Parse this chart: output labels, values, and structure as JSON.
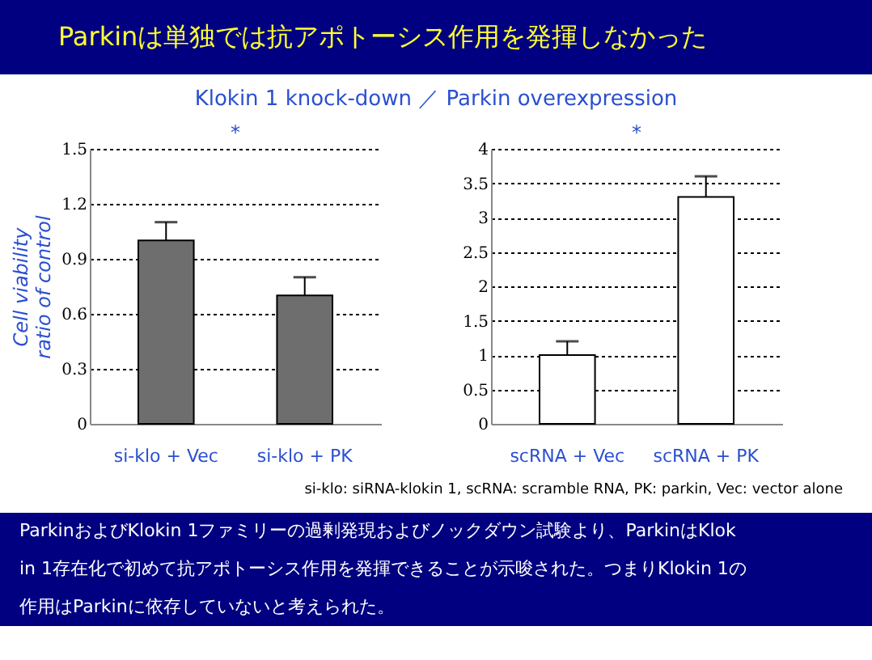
{
  "chart_data": [
    {
      "type": "bar",
      "title": "Parkinは単独では抗アポトーシス作用を発揮しなかった",
      "subtitle": "Klokin 1  knock-down  ／  Parkin  overexpression",
      "ylabel": "Cell viability\nratio of control",
      "categories": [
        "si-klo + Vec",
        "si-klo + PK"
      ],
      "values": [
        1.0,
        0.7
      ],
      "color": "#6e6e6e",
      "errors": [
        [
          1.0,
          1.1
        ],
        [
          0.7,
          0.8
        ]
      ],
      "ylim": [
        0,
        1.5
      ],
      "yticks": [
        0,
        0.3,
        0.6,
        0.9,
        1.2,
        1.5
      ],
      "grid": "y",
      "annotations": [
        "*",
        "si-klo: siRNA-klokin 1, scRNA: scramble RNA, PK: parkin, Vec: vector alone",
        "ParkinおよびKlokin 1ファミリーの過剰発現およびノックダウン試験より、ParkinはKlokin 1存在化で初めて抗アポトーシス作用を発揮できることが示唆された。つまりKlokin 1の作用はParkinに依存していないと考えられた。"
      ]
    },
    {
      "type": "bar",
      "categories": [
        "scRNA + Vec",
        "scRNA + PK"
      ],
      "values": [
        1.0,
        3.3
      ],
      "color": "#ffffff",
      "errors": [
        [
          1.0,
          1.2
        ],
        [
          3.3,
          3.6
        ]
      ],
      "ylim": [
        0,
        4
      ],
      "yticks": [
        0,
        0.5,
        1,
        1.5,
        2,
        2.5,
        3,
        3.5,
        4
      ],
      "grid": "y",
      "annotations": [
        "*"
      ]
    }
  ]
}
